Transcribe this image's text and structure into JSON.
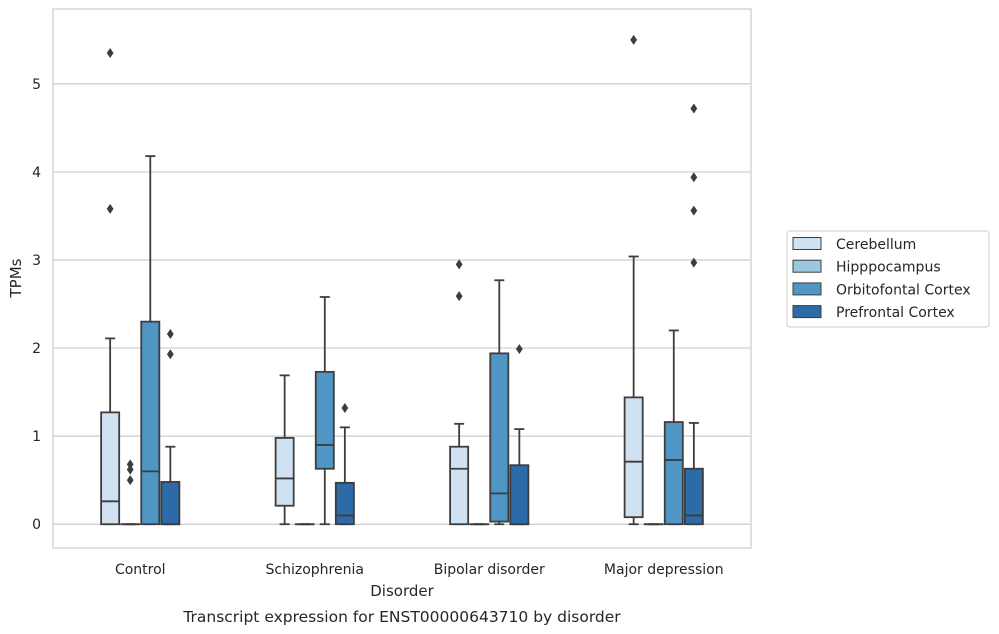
{
  "caption": "Transcript expression for ENST00000643710 by disorder",
  "chart_data": {
    "type": "box",
    "xlabel": "Disorder",
    "ylabel": "TPMs",
    "ylim": [
      -0.27,
      5.85
    ],
    "yticks": [
      0,
      1,
      2,
      3,
      4,
      5
    ],
    "grid": "horizontal",
    "legend_position": "right",
    "categories": [
      "Control",
      "Schizophrenia",
      "Bipolar disorder",
      "Major depression"
    ],
    "series": [
      {
        "name": "Cerebellum",
        "color": "#d0e1f2",
        "boxes": [
          {
            "whisker_low": 0,
            "q1": 0,
            "median": 0.26,
            "q3": 1.27,
            "whisker_high": 2.11,
            "outliers": [
              3.58,
              5.35
            ]
          },
          {
            "whisker_low": 0,
            "q1": 0.21,
            "median": 0.52,
            "q3": 0.98,
            "whisker_high": 1.69,
            "outliers": []
          },
          {
            "whisker_low": 0,
            "q1": 0,
            "median": 0.63,
            "q3": 0.88,
            "whisker_high": 1.14,
            "outliers": [
              2.59,
              2.95
            ]
          },
          {
            "whisker_low": 0,
            "q1": 0.08,
            "median": 0.71,
            "q3": 1.44,
            "whisker_high": 3.04,
            "outliers": [
              5.5
            ]
          }
        ]
      },
      {
        "name": "Hipppocampus",
        "color": "#9ac8e0",
        "boxes": [
          {
            "whisker_low": 0,
            "q1": 0,
            "median": 0,
            "q3": 0,
            "whisker_high": 0,
            "outliers": [
              0.5,
              0.62,
              0.68
            ]
          },
          {
            "whisker_low": 0,
            "q1": 0,
            "median": 0,
            "q3": 0,
            "whisker_high": 0,
            "outliers": []
          },
          {
            "whisker_low": 0,
            "q1": 0,
            "median": 0,
            "q3": 0,
            "whisker_high": 0,
            "outliers": []
          },
          {
            "whisker_low": 0,
            "q1": 0,
            "median": 0,
            "q3": 0,
            "whisker_high": 0,
            "outliers": []
          }
        ]
      },
      {
        "name": "Orbitofontal Cortex",
        "color": "#5096c5",
        "boxes": [
          {
            "whisker_low": 0,
            "q1": 0,
            "median": 0.6,
            "q3": 2.3,
            "whisker_high": 4.18,
            "outliers": []
          },
          {
            "whisker_low": 0,
            "q1": 0.63,
            "median": 0.9,
            "q3": 1.73,
            "whisker_high": 2.58,
            "outliers": []
          },
          {
            "whisker_low": 0,
            "q1": 0.03,
            "median": 0.35,
            "q3": 1.94,
            "whisker_high": 2.77,
            "outliers": []
          },
          {
            "whisker_low": 0,
            "q1": 0,
            "median": 0.73,
            "q3": 1.16,
            "whisker_high": 2.2,
            "outliers": []
          }
        ]
      },
      {
        "name": "Prefrontal Cortex",
        "color": "#2c6aa8",
        "boxes": [
          {
            "whisker_low": 0,
            "q1": 0,
            "median": 0,
            "q3": 0.48,
            "whisker_high": 0.88,
            "outliers": [
              1.93,
              2.16
            ]
          },
          {
            "whisker_low": 0,
            "q1": 0,
            "median": 0.1,
            "q3": 0.47,
            "whisker_high": 1.1,
            "outliers": [
              1.32
            ]
          },
          {
            "whisker_low": 0,
            "q1": 0,
            "median": 0,
            "q3": 0.67,
            "whisker_high": 1.08,
            "outliers": [
              1.99
            ]
          },
          {
            "whisker_low": 0,
            "q1": 0,
            "median": 0.1,
            "q3": 0.63,
            "whisker_high": 1.15,
            "outliers": [
              2.97,
              3.56,
              3.94,
              4.72
            ]
          }
        ]
      }
    ]
  }
}
